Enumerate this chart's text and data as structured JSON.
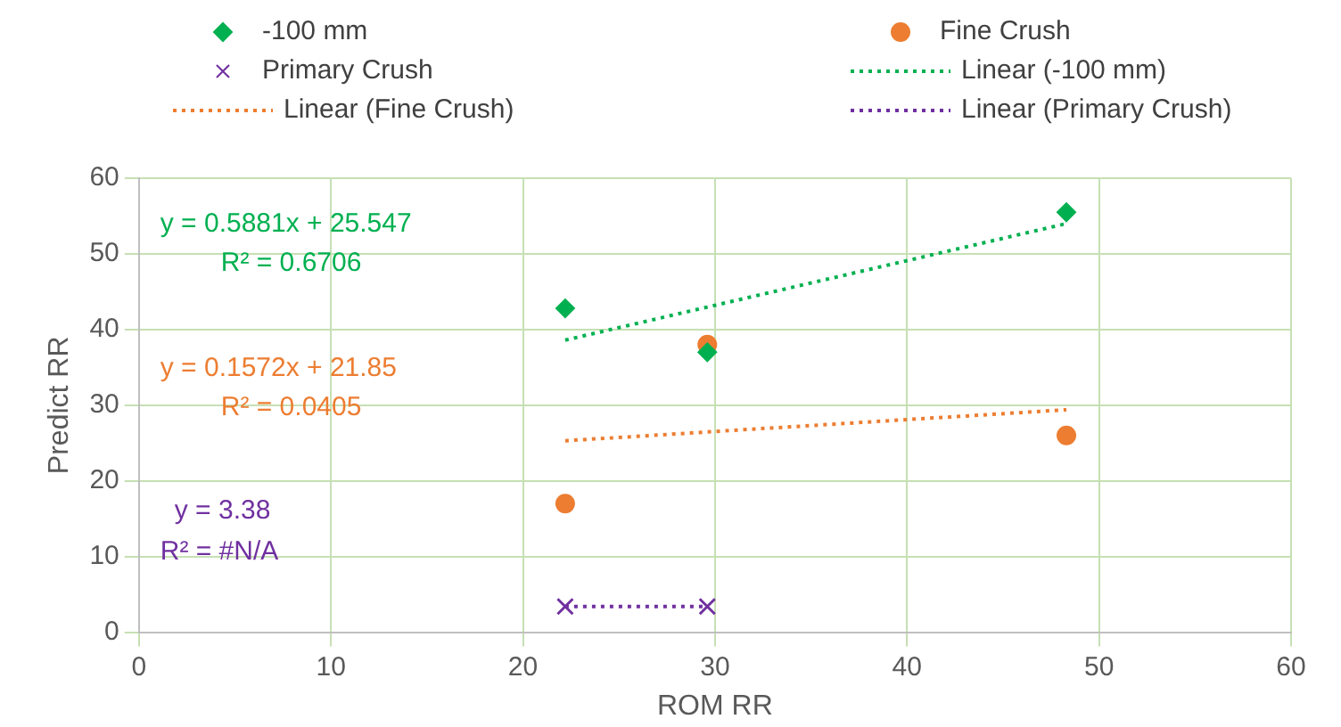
{
  "chart_data": {
    "type": "scatter",
    "xlabel": "ROM RR",
    "ylabel": "Predict RR",
    "xlim": [
      0,
      60
    ],
    "xticks": [
      0,
      10,
      20,
      30,
      40,
      50,
      60
    ],
    "ylim": [
      0,
      60
    ],
    "yticks": [
      0,
      10,
      20,
      30,
      40,
      50,
      60
    ],
    "grid": true,
    "legend": "top",
    "series": [
      {
        "name": "-100 mm",
        "type": "scatter",
        "marker": "diamond",
        "color": "#00b050",
        "x": [
          22.2,
          29.6,
          48.3
        ],
        "values": [
          42.8,
          37,
          55.5
        ]
      },
      {
        "name": "Fine Crush",
        "type": "scatter",
        "marker": "circle",
        "color": "#ed7d31",
        "x": [
          22.2,
          29.6,
          48.3
        ],
        "values": [
          17,
          38,
          26
        ]
      },
      {
        "name": "Primary Crush",
        "type": "scatter",
        "marker": "cross",
        "color": "#7030a0",
        "x": [
          22.2,
          29.6
        ],
        "values": [
          3.4,
          3.4
        ]
      },
      {
        "name": "Linear (-100 mm)",
        "type": "line",
        "marker": "none",
        "line_style": "dotted",
        "color": "#00b050",
        "x": [
          22.2,
          48.3
        ],
        "values": [
          38.6,
          54
        ]
      },
      {
        "name": "Linear (Fine Crush)",
        "type": "line",
        "marker": "none",
        "line_style": "dotted",
        "color": "#ed7d31",
        "x": [
          22.2,
          48.3
        ],
        "values": [
          25.3,
          29.4
        ]
      },
      {
        "name": "Linear (Primary Crush)",
        "type": "line",
        "marker": "none",
        "line_style": "dotted",
        "color": "#7030a0",
        "x": [
          22.2,
          29.6
        ],
        "values": [
          3.4,
          3.4
        ]
      }
    ],
    "annotations": [
      "y = 0.5881x + 25.547",
      "R² = 0.6706",
      "y = 0.1572x + 21.85",
      "R² = 0.0405",
      "y = 3.38",
      "R² = #N/A"
    ]
  }
}
